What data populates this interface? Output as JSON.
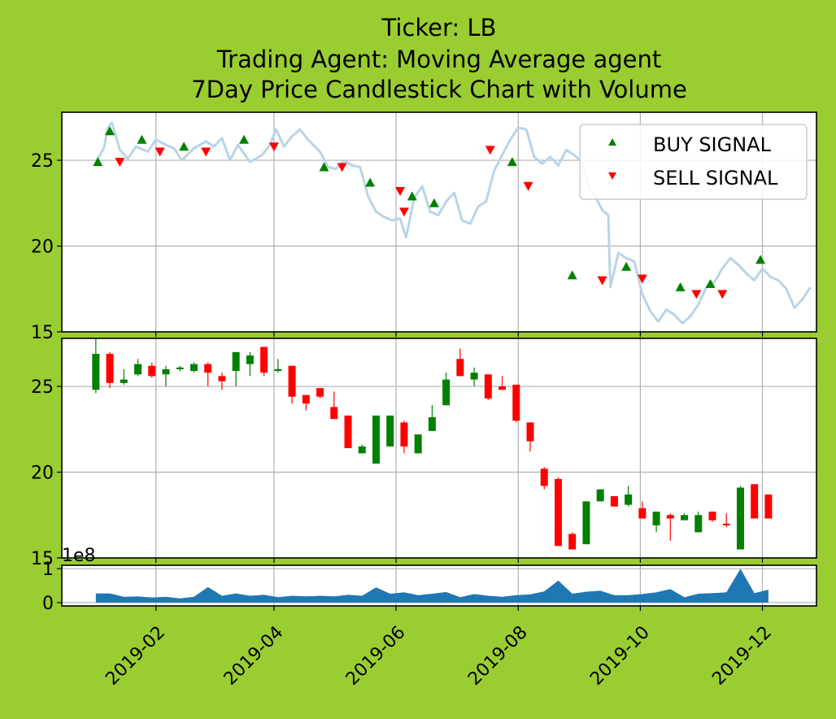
{
  "title_lines": [
    "Ticker: LB",
    "Trading Agent: Moving Average agent",
    "7Day Price Candlestick Chart with Volume"
  ],
  "colors": {
    "background": "#9acd32",
    "axes_face": "#ffffff",
    "price_line": "#b9d4e7",
    "buy": "#008000",
    "sell": "#ff0000",
    "candle_up": "#008000",
    "candle_down": "#ff0000",
    "volume_fill": "#1f77b4",
    "grid": "#b0b0b0"
  },
  "chart_data": {
    "type": "line",
    "x_type": "date",
    "x_ticks": [
      "2019-02",
      "2019-04",
      "2019-06",
      "2019-08",
      "2019-10",
      "2019-12"
    ],
    "x_range": [
      "2018-12-16",
      "2019-12-28"
    ],
    "price_panel": {
      "ylim": [
        15,
        27.8
      ],
      "yticks": [
        "15",
        "20",
        "25"
      ],
      "grid": true,
      "legend": {
        "position": "top-right",
        "entries": [
          "BUY SIGNAL",
          "SELL SIGNAL"
        ]
      },
      "close": [
        [
          "2019-01-02",
          24.9
        ],
        [
          "2019-01-06",
          25.7
        ],
        [
          "2019-01-08",
          26.9
        ],
        [
          "2019-01-10",
          27.2
        ],
        [
          "2019-01-14",
          25.6
        ],
        [
          "2019-01-18",
          25.1
        ],
        [
          "2019-01-22",
          25.8
        ],
        [
          "2019-01-28",
          25.5
        ],
        [
          "2019-02-01",
          26.2
        ],
        [
          "2019-02-06",
          25.9
        ],
        [
          "2019-02-10",
          25.7
        ],
        [
          "2019-02-14",
          25.0
        ],
        [
          "2019-02-20",
          25.7
        ],
        [
          "2019-02-26",
          26.1
        ],
        [
          "2019-03-02",
          25.8
        ],
        [
          "2019-03-06",
          26.3
        ],
        [
          "2019-03-10",
          25.0
        ],
        [
          "2019-03-14",
          25.9
        ],
        [
          "2019-03-20",
          24.9
        ],
        [
          "2019-03-26",
          25.3
        ],
        [
          "2019-03-30",
          25.9
        ],
        [
          "2019-04-02",
          26.8
        ],
        [
          "2019-04-06",
          25.8
        ],
        [
          "2019-04-10",
          26.4
        ],
        [
          "2019-04-14",
          26.8
        ],
        [
          "2019-04-18",
          26.2
        ],
        [
          "2019-04-24",
          25.5
        ],
        [
          "2019-04-28",
          24.6
        ],
        [
          "2019-05-02",
          24.5
        ],
        [
          "2019-05-06",
          25.0
        ],
        [
          "2019-05-10",
          24.7
        ],
        [
          "2019-05-14",
          24.6
        ],
        [
          "2019-05-18",
          22.9
        ],
        [
          "2019-05-22",
          22.0
        ],
        [
          "2019-05-26",
          21.7
        ],
        [
          "2019-05-30",
          21.5
        ],
        [
          "2019-06-03",
          21.6
        ],
        [
          "2019-06-06",
          20.5
        ],
        [
          "2019-06-10",
          22.8
        ],
        [
          "2019-06-14",
          23.5
        ],
        [
          "2019-06-18",
          22.0
        ],
        [
          "2019-06-22",
          21.8
        ],
        [
          "2019-06-26",
          22.6
        ],
        [
          "2019-06-30",
          23.1
        ],
        [
          "2019-07-04",
          21.5
        ],
        [
          "2019-07-08",
          21.3
        ],
        [
          "2019-07-12",
          22.3
        ],
        [
          "2019-07-16",
          22.6
        ],
        [
          "2019-07-20",
          24.4
        ],
        [
          "2019-07-24",
          25.3
        ],
        [
          "2019-07-28",
          26.2
        ],
        [
          "2019-08-01",
          26.9
        ],
        [
          "2019-08-05",
          26.8
        ],
        [
          "2019-08-09",
          25.2
        ],
        [
          "2019-08-13",
          24.8
        ],
        [
          "2019-08-17",
          25.2
        ],
        [
          "2019-08-21",
          24.7
        ],
        [
          "2019-08-25",
          25.6
        ],
        [
          "2019-08-29",
          25.3
        ],
        [
          "2019-09-02",
          24.9
        ],
        [
          "2019-09-06",
          23.2
        ],
        [
          "2019-09-08",
          23.0
        ],
        [
          "2019-09-12",
          22.1
        ],
        [
          "2019-09-15",
          21.8
        ],
        [
          "2019-09-16",
          17.6
        ],
        [
          "2019-09-20",
          19.6
        ],
        [
          "2019-09-24",
          19.3
        ],
        [
          "2019-09-28",
          19.1
        ],
        [
          "2019-10-02",
          17.2
        ],
        [
          "2019-10-06",
          16.2
        ],
        [
          "2019-10-10",
          15.6
        ],
        [
          "2019-10-14",
          16.3
        ],
        [
          "2019-10-18",
          16.0
        ],
        [
          "2019-10-22",
          15.5
        ],
        [
          "2019-10-26",
          15.9
        ],
        [
          "2019-10-30",
          16.6
        ],
        [
          "2019-11-03",
          17.6
        ],
        [
          "2019-11-07",
          17.9
        ],
        [
          "2019-11-11",
          18.7
        ],
        [
          "2019-11-15",
          19.3
        ],
        [
          "2019-11-19",
          18.9
        ],
        [
          "2019-11-23",
          18.4
        ],
        [
          "2019-11-27",
          18.0
        ],
        [
          "2019-12-01",
          18.7
        ],
        [
          "2019-12-05",
          18.2
        ],
        [
          "2019-12-09",
          18.0
        ],
        [
          "2019-12-13",
          17.5
        ],
        [
          "2019-12-17",
          16.4
        ],
        [
          "2019-12-21",
          16.9
        ],
        [
          "2019-12-25",
          17.6
        ]
      ],
      "buy_signals": [
        [
          "2019-01-03",
          24.9
        ],
        [
          "2019-01-09",
          26.7
        ],
        [
          "2019-01-25",
          26.2
        ],
        [
          "2019-02-15",
          25.8
        ],
        [
          "2019-03-17",
          26.2
        ],
        [
          "2019-04-26",
          24.6
        ],
        [
          "2019-05-19",
          23.7
        ],
        [
          "2019-06-09",
          22.9
        ],
        [
          "2019-06-20",
          22.5
        ],
        [
          "2019-07-29",
          24.9
        ],
        [
          "2019-08-28",
          18.3
        ],
        [
          "2019-09-24",
          18.8
        ],
        [
          "2019-10-21",
          17.6
        ],
        [
          "2019-11-05",
          17.8
        ],
        [
          "2019-11-30",
          19.2
        ]
      ],
      "sell_signals": [
        [
          "2019-01-14",
          24.9
        ],
        [
          "2019-02-03",
          25.5
        ],
        [
          "2019-02-26",
          25.5
        ],
        [
          "2019-04-01",
          25.8
        ],
        [
          "2019-05-05",
          24.6
        ],
        [
          "2019-06-03",
          23.2
        ],
        [
          "2019-06-05",
          22.0
        ],
        [
          "2019-07-18",
          25.6
        ],
        [
          "2019-08-06",
          23.5
        ],
        [
          "2019-09-12",
          18.0
        ],
        [
          "2019-10-02",
          18.1
        ],
        [
          "2019-10-29",
          17.2
        ],
        [
          "2019-11-11",
          17.2
        ]
      ]
    },
    "candle_panel": {
      "ylim": [
        15,
        27.8
      ],
      "yticks": [
        "15",
        "20",
        "25"
      ],
      "grid": true,
      "candles": [
        [
          "2019-01-02",
          24.8,
          26.9,
          24.6,
          27.8
        ],
        [
          "2019-01-09",
          26.9,
          25.2,
          24.9,
          27.0
        ],
        [
          "2019-01-16",
          25.2,
          25.4,
          25.1,
          26.0
        ],
        [
          "2019-01-23",
          25.7,
          26.3,
          25.6,
          26.6
        ],
        [
          "2019-01-30",
          26.2,
          25.6,
          25.5,
          26.4
        ],
        [
          "2019-02-06",
          25.7,
          26.0,
          25.0,
          26.2
        ],
        [
          "2019-02-13",
          26.0,
          26.1,
          25.9,
          26.2
        ],
        [
          "2019-02-20",
          25.9,
          26.3,
          25.8,
          26.4
        ],
        [
          "2019-02-27",
          26.3,
          25.8,
          25.0,
          26.4
        ],
        [
          "2019-03-06",
          25.6,
          25.3,
          24.8,
          25.8
        ],
        [
          "2019-03-13",
          25.9,
          27.0,
          25.0,
          27.0
        ],
        [
          "2019-03-20",
          26.3,
          26.8,
          25.6,
          27.0
        ],
        [
          "2019-03-27",
          27.3,
          25.8,
          25.6,
          27.3
        ],
        [
          "2019-04-03",
          25.9,
          26.0,
          25.8,
          26.6
        ],
        [
          "2019-04-10",
          26.2,
          24.4,
          24.0,
          26.2
        ],
        [
          "2019-04-17",
          24.5,
          24.0,
          23.6,
          24.5
        ],
        [
          "2019-04-24",
          24.9,
          24.4,
          24.3,
          24.9
        ],
        [
          "2019-05-01",
          23.8,
          23.1,
          23.1,
          24.7
        ],
        [
          "2019-05-08",
          23.3,
          21.4,
          21.4,
          23.3
        ],
        [
          "2019-05-15",
          21.1,
          21.5,
          21.1,
          21.6
        ],
        [
          "2019-05-22",
          20.5,
          23.3,
          20.5,
          23.3
        ],
        [
          "2019-05-29",
          21.5,
          23.3,
          21.5,
          23.3
        ],
        [
          "2019-06-05",
          22.9,
          21.5,
          21.1,
          23.0
        ],
        [
          "2019-06-12",
          21.1,
          22.2,
          21.1,
          22.2
        ],
        [
          "2019-06-19",
          22.4,
          23.2,
          22.4,
          23.9
        ],
        [
          "2019-06-26",
          23.9,
          25.4,
          23.9,
          25.8
        ],
        [
          "2019-07-03",
          26.6,
          25.6,
          25.6,
          27.2
        ],
        [
          "2019-07-10",
          25.4,
          25.8,
          25.0,
          26.1
        ],
        [
          "2019-07-17",
          25.7,
          24.3,
          24.2,
          25.7
        ],
        [
          "2019-07-24",
          25.0,
          24.8,
          24.8,
          25.6
        ],
        [
          "2019-07-31",
          25.1,
          23.0,
          22.9,
          25.1
        ],
        [
          "2019-08-07",
          22.9,
          21.8,
          21.2,
          22.9
        ],
        [
          "2019-08-14",
          20.2,
          19.2,
          19.0,
          20.3
        ],
        [
          "2019-08-21",
          19.6,
          15.7,
          15.7,
          19.7
        ],
        [
          "2019-08-28",
          16.4,
          15.5,
          15.5,
          16.5
        ],
        [
          "2019-09-04",
          15.8,
          18.3,
          15.8,
          18.3
        ],
        [
          "2019-09-11",
          18.3,
          19.0,
          18.3,
          19.0
        ],
        [
          "2019-09-18",
          18.6,
          18.0,
          18.0,
          18.6
        ],
        [
          "2019-09-25",
          18.1,
          18.7,
          18.0,
          19.2
        ],
        [
          "2019-10-02",
          17.9,
          17.3,
          17.3,
          18.3
        ],
        [
          "2019-10-09",
          16.9,
          17.7,
          16.5,
          17.7
        ],
        [
          "2019-10-16",
          17.5,
          17.3,
          16.0,
          17.6
        ],
        [
          "2019-10-23",
          17.2,
          17.5,
          17.2,
          17.6
        ],
        [
          "2019-10-30",
          16.5,
          17.5,
          16.5,
          17.7
        ],
        [
          "2019-11-06",
          17.7,
          17.2,
          17.1,
          17.7
        ],
        [
          "2019-11-13",
          17.0,
          16.9,
          16.8,
          17.6
        ],
        [
          "2019-11-20",
          15.5,
          19.1,
          15.5,
          19.2
        ],
        [
          "2019-11-27",
          19.3,
          17.3,
          17.3,
          19.3
        ],
        [
          "2019-12-04",
          18.7,
          17.3,
          17.3,
          18.7
        ]
      ]
    },
    "volume_panel": {
      "ylim": [
        -0.1,
        1.1
      ],
      "yticks": [
        "0",
        "1"
      ],
      "offset_label": "1e8",
      "grid": true,
      "volume": [
        [
          "2019-01-02",
          0.27
        ],
        [
          "2019-01-09",
          0.27
        ],
        [
          "2019-01-16",
          0.17
        ],
        [
          "2019-01-23",
          0.18
        ],
        [
          "2019-01-30",
          0.15
        ],
        [
          "2019-02-06",
          0.17
        ],
        [
          "2019-02-13",
          0.12
        ],
        [
          "2019-02-20",
          0.17
        ],
        [
          "2019-02-27",
          0.46
        ],
        [
          "2019-03-06",
          0.2
        ],
        [
          "2019-03-13",
          0.27
        ],
        [
          "2019-03-20",
          0.2
        ],
        [
          "2019-03-27",
          0.23
        ],
        [
          "2019-04-03",
          0.16
        ],
        [
          "2019-04-10",
          0.2
        ],
        [
          "2019-04-17",
          0.18
        ],
        [
          "2019-04-24",
          0.2
        ],
        [
          "2019-05-01",
          0.18
        ],
        [
          "2019-05-08",
          0.23
        ],
        [
          "2019-05-15",
          0.2
        ],
        [
          "2019-05-22",
          0.45
        ],
        [
          "2019-05-29",
          0.26
        ],
        [
          "2019-06-05",
          0.3
        ],
        [
          "2019-06-12",
          0.22
        ],
        [
          "2019-06-19",
          0.26
        ],
        [
          "2019-06-26",
          0.31
        ],
        [
          "2019-07-03",
          0.16
        ],
        [
          "2019-07-10",
          0.25
        ],
        [
          "2019-07-17",
          0.2
        ],
        [
          "2019-07-24",
          0.17
        ],
        [
          "2019-07-31",
          0.22
        ],
        [
          "2019-08-07",
          0.24
        ],
        [
          "2019-08-14",
          0.33
        ],
        [
          "2019-08-21",
          0.65
        ],
        [
          "2019-08-28",
          0.26
        ],
        [
          "2019-09-04",
          0.32
        ],
        [
          "2019-09-11",
          0.35
        ],
        [
          "2019-09-18",
          0.22
        ],
        [
          "2019-09-25",
          0.22
        ],
        [
          "2019-10-02",
          0.25
        ],
        [
          "2019-10-09",
          0.3
        ],
        [
          "2019-10-16",
          0.4
        ],
        [
          "2019-10-23",
          0.16
        ],
        [
          "2019-10-30",
          0.26
        ],
        [
          "2019-11-06",
          0.28
        ],
        [
          "2019-11-13",
          0.3
        ],
        [
          "2019-11-20",
          1.0
        ],
        [
          "2019-11-27",
          0.28
        ],
        [
          "2019-12-04",
          0.38
        ]
      ]
    }
  }
}
